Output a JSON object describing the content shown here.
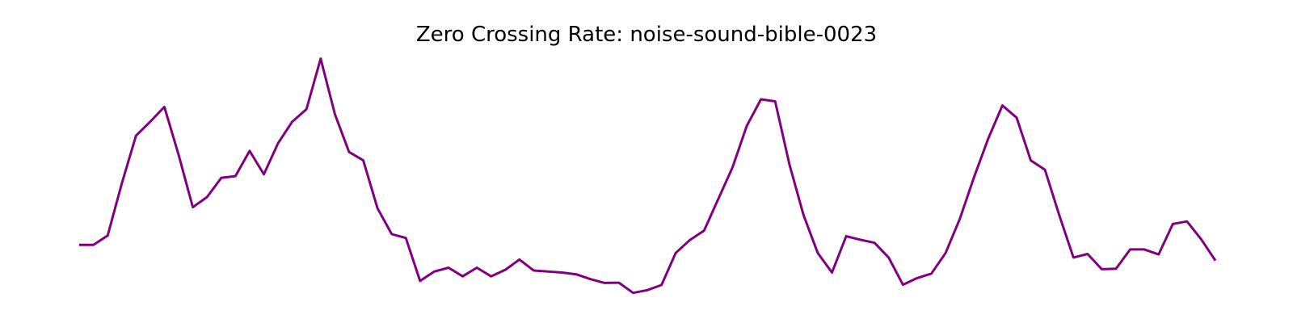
{
  "chart_data": {
    "type": "line",
    "title": "Zero Crossing Rate: noise-sound-bible-0023",
    "xlabel": "",
    "ylabel": "",
    "grid": false,
    "axes_visible": false,
    "ylim": [
      0,
      1
    ],
    "series": [
      {
        "color": "#800080",
        "x": [
          0,
          1,
          2,
          3,
          4,
          5,
          6,
          7,
          8,
          9,
          10,
          11,
          12,
          13,
          14,
          15,
          16,
          17,
          18,
          19,
          20,
          21,
          22,
          23,
          24,
          25,
          26,
          27,
          28,
          29,
          30,
          31,
          32,
          33,
          34,
          35,
          36,
          37,
          38,
          39,
          40,
          41,
          42,
          43,
          44,
          45,
          46,
          47,
          48,
          49,
          50,
          51,
          52,
          53,
          54,
          55,
          56,
          57,
          58,
          59,
          60,
          61,
          62,
          63,
          64,
          65,
          66,
          67,
          68,
          69,
          70,
          71,
          72,
          73,
          74,
          75,
          76,
          77,
          78,
          79,
          80
        ],
        "values": [
          0.228,
          0.228,
          0.264,
          0.469,
          0.657,
          0.712,
          0.77,
          0.582,
          0.376,
          0.416,
          0.491,
          0.498,
          0.597,
          0.505,
          0.627,
          0.712,
          0.761,
          0.96,
          0.742,
          0.593,
          0.56,
          0.372,
          0.27,
          0.255,
          0.086,
          0.123,
          0.138,
          0.104,
          0.138,
          0.104,
          0.13,
          0.17,
          0.127,
          0.123,
          0.119,
          0.112,
          0.093,
          0.078,
          0.079,
          0.039,
          0.05,
          0.07,
          0.196,
          0.247,
          0.284,
          0.409,
          0.532,
          0.695,
          0.8,
          0.792,
          0.545,
          0.345,
          0.196,
          0.119,
          0.262,
          0.248,
          0.236,
          0.177,
          0.071,
          0.097,
          0.115,
          0.196,
          0.33,
          0.493,
          0.645,
          0.776,
          0.728,
          0.56,
          0.523,
          0.345,
          0.178,
          0.192,
          0.132,
          0.134,
          0.21,
          0.21,
          0.19,
          0.31,
          0.32,
          0.25,
          0.166
        ]
      }
    ]
  }
}
